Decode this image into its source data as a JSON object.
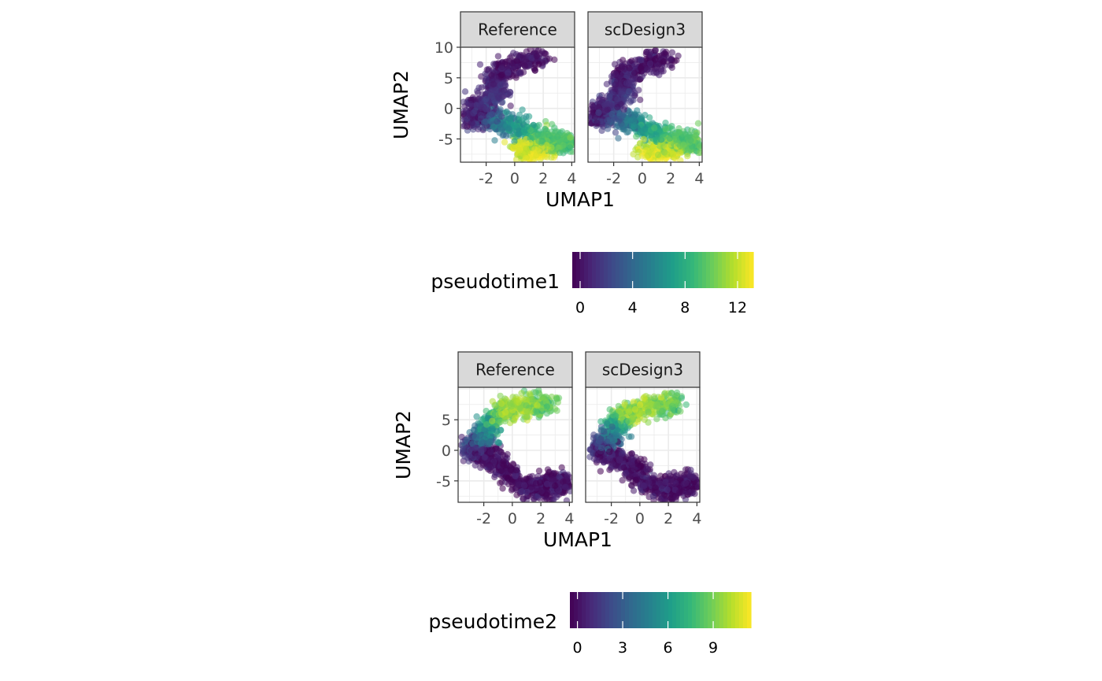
{
  "chart_data": [
    {
      "type": "scatter",
      "panels": [
        "Reference",
        "scDesign3"
      ],
      "xlabel": "UMAP1",
      "ylabel": "UMAP2",
      "xlim": [
        -3.8,
        4.2
      ],
      "ylim": [
        -8.8,
        10
      ],
      "xticks": [
        -2,
        0,
        2,
        4
      ],
      "xtick_labels": [
        "-2",
        "0",
        "2",
        "4"
      ],
      "yticks": [
        -5,
        0,
        5,
        10
      ],
      "ytick_labels": [
        "-5",
        "0",
        "5",
        "10"
      ],
      "color_by": "pseudotime1",
      "grid": true,
      "legend": {
        "title": "pseudotime1",
        "position": "bottom",
        "range": [
          -0.6,
          13.2
        ],
        "breaks": [
          0,
          4,
          8,
          12
        ],
        "labels": [
          "0",
          "4",
          "8",
          "12"
        ],
        "palette": [
          "#440154",
          "#482878",
          "#3e4a89",
          "#31688e",
          "#26828e",
          "#1f9e89",
          "#35b779",
          "#6dcd59",
          "#b4de2c",
          "#fde725"
        ]
      },
      "trajectory": [
        {
          "x": -3.2,
          "y": -1.6,
          "t": 0.0
        },
        {
          "x": -2.8,
          "y": -0.2,
          "t": 0.5
        },
        {
          "x": -2.0,
          "y": 0.8,
          "t": 1.2
        },
        {
          "x": -1.3,
          "y": 2.6,
          "t": 1.5
        },
        {
          "x": -1.5,
          "y": 4.8,
          "t": 0.4
        },
        {
          "x": -0.8,
          "y": 6.3,
          "t": 0.2
        },
        {
          "x": 0.6,
          "y": 7.4,
          "t": 0.1
        },
        {
          "x": 2.0,
          "y": 8.5,
          "t": 0.0
        },
        {
          "x": -3.1,
          "y": -1.8,
          "t": 0.8
        },
        {
          "x": -1.8,
          "y": -1.7,
          "t": 3.0
        },
        {
          "x": -0.5,
          "y": -2.4,
          "t": 5.5
        },
        {
          "x": 0.5,
          "y": -3.6,
          "t": 7.5
        },
        {
          "x": 1.8,
          "y": -4.6,
          "t": 9.0
        },
        {
          "x": 3.2,
          "y": -5.4,
          "t": 9.5
        },
        {
          "x": 3.8,
          "y": -5.8,
          "t": 9.3
        },
        {
          "x": 0.3,
          "y": -6.4,
          "t": 12.0
        },
        {
          "x": 1.2,
          "y": -7.6,
          "t": 12.8
        },
        {
          "x": 2.4,
          "y": -7.0,
          "t": 12.2
        }
      ],
      "trajectory_spread": [
        0.45,
        0.9
      ],
      "point_alpha": 0.55
    },
    {
      "type": "scatter",
      "panels": [
        "Reference",
        "scDesign3"
      ],
      "xlabel": "UMAP1",
      "ylabel": "UMAP2",
      "xlim": [
        -3.8,
        4.2
      ],
      "ylim": [
        -8.5,
        10.3
      ],
      "xticks": [
        -2,
        0,
        2,
        4
      ],
      "xtick_labels": [
        "-2",
        "0",
        "2",
        "4"
      ],
      "yticks": [
        -5,
        0,
        5
      ],
      "ytick_labels": [
        "-5",
        "0",
        "5"
      ],
      "color_by": "pseudotime2",
      "grid": true,
      "legend": {
        "title": "pseudotime2",
        "position": "bottom",
        "range": [
          -0.5,
          11.5
        ],
        "breaks": [
          0,
          3,
          6,
          9
        ],
        "labels": [
          "0",
          "3",
          "6",
          "9"
        ],
        "palette": [
          "#440154",
          "#482878",
          "#3e4a89",
          "#31688e",
          "#26828e",
          "#1f9e89",
          "#35b779",
          "#6dcd59",
          "#b4de2c",
          "#fde725"
        ]
      },
      "trajectory": [
        {
          "x": -3.0,
          "y": -0.2,
          "t": 0.8
        },
        {
          "x": -2.6,
          "y": 0.8,
          "t": 2.0
        },
        {
          "x": -2.0,
          "y": 2.2,
          "t": 4.5
        },
        {
          "x": -1.6,
          "y": 4.6,
          "t": 7.0
        },
        {
          "x": -0.9,
          "y": 6.0,
          "t": 9.5
        },
        {
          "x": 0.3,
          "y": 7.0,
          "t": 10.0
        },
        {
          "x": 1.6,
          "y": 7.6,
          "t": 9.0
        },
        {
          "x": 2.6,
          "y": 7.6,
          "t": 8.2
        },
        {
          "x": -2.8,
          "y": -0.6,
          "t": 0.3
        },
        {
          "x": -1.5,
          "y": -1.0,
          "t": 0.1
        },
        {
          "x": -0.6,
          "y": -3.0,
          "t": 0.0
        },
        {
          "x": 0.6,
          "y": -5.5,
          "t": 0.0
        },
        {
          "x": 1.6,
          "y": -6.8,
          "t": 0.0
        },
        {
          "x": 3.0,
          "y": -5.2,
          "t": 0.0
        },
        {
          "x": 3.8,
          "y": -5.4,
          "t": 0.0
        },
        {
          "x": 2.0,
          "y": -7.4,
          "t": 0.0
        }
      ],
      "trajectory_spread": [
        0.45,
        0.9
      ],
      "point_alpha": 0.55
    }
  ]
}
